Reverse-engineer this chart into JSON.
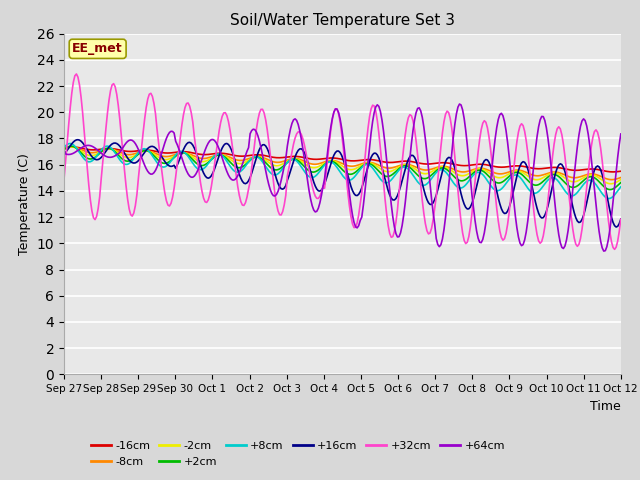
{
  "title": "Soil/Water Temperature Set 3",
  "xlabel": "Time",
  "ylabel": "Temperature (C)",
  "annotation": "EE_met",
  "ylim": [
    0,
    26
  ],
  "yticks": [
    0,
    2,
    4,
    6,
    8,
    10,
    12,
    14,
    16,
    18,
    20,
    22,
    24,
    26
  ],
  "xtick_labels": [
    "Sep 27",
    "Sep 28",
    "Sep 29",
    "Sep 30",
    "Oct 1",
    "Oct 2",
    "Oct 3",
    "Oct 4",
    "Oct 5",
    "Oct 6",
    "Oct 7",
    "Oct 8",
    "Oct 9",
    "Oct 10",
    "Oct 11",
    "Oct 12"
  ],
  "series": {
    "-16cm": {
      "color": "#dd0000",
      "linewidth": 1.2
    },
    "-8cm": {
      "color": "#ff8800",
      "linewidth": 1.2
    },
    "-2cm": {
      "color": "#eeee00",
      "linewidth": 1.2
    },
    "+2cm": {
      "color": "#00bb00",
      "linewidth": 1.2
    },
    "+8cm": {
      "color": "#00cccc",
      "linewidth": 1.2
    },
    "+16cm": {
      "color": "#000088",
      "linewidth": 1.2
    },
    "+32cm": {
      "color": "#ff44cc",
      "linewidth": 1.2
    },
    "+64cm": {
      "color": "#9900cc",
      "linewidth": 1.2
    }
  },
  "fig_width": 6.4,
  "fig_height": 4.8,
  "dpi": 100
}
